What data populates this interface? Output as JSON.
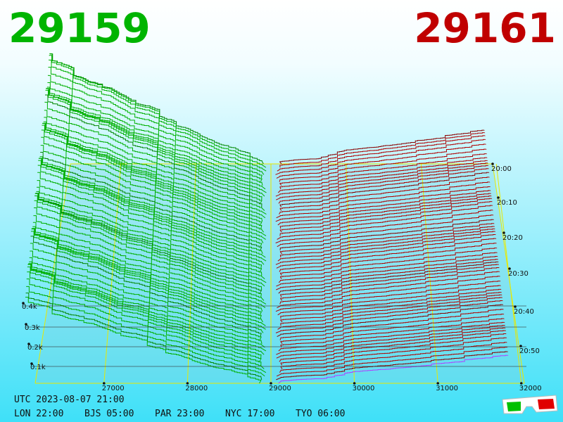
{
  "header": {
    "bid": "29159",
    "ask": "29161"
  },
  "axes": {
    "price_ticks": [
      "27000",
      "28000",
      "29000",
      "30000",
      "31000",
      "32000"
    ],
    "depth_ticks": [
      "0.1k",
      "0.2k",
      "0.3k",
      "0.4k"
    ],
    "time_ticks": [
      "20:00",
      "20:10",
      "20:20",
      "20:30",
      "20:40",
      "20:50"
    ]
  },
  "footer": {
    "utc": "UTC 2023-08-07 21:00",
    "cities": [
      "LON 22:00",
      "BJS 05:00",
      "PAR 23:00",
      "NYC 17:00",
      "TYO 06:00"
    ]
  }
}
